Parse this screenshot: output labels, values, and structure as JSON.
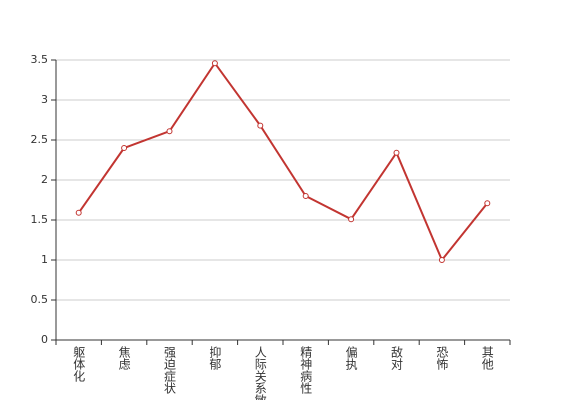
{
  "chart_data": {
    "type": "line",
    "categories": [
      "躯体化",
      "焦虑",
      "强迫症状",
      "抑郁",
      "人际关系敏感",
      "精神病性",
      "偏执",
      "敌对",
      "恐怖",
      "其他"
    ],
    "series": [
      {
        "color": "#c23531",
        "values": [
          1.59,
          2.4,
          2.61,
          3.46,
          2.68,
          1.8,
          1.51,
          2.34,
          1.0,
          1.71
        ]
      }
    ],
    "ylim": [
      0,
      3.5
    ],
    "yticks": [
      0,
      0.5,
      1,
      1.5,
      2,
      2.5,
      3,
      3.5
    ],
    "grid": true
  }
}
